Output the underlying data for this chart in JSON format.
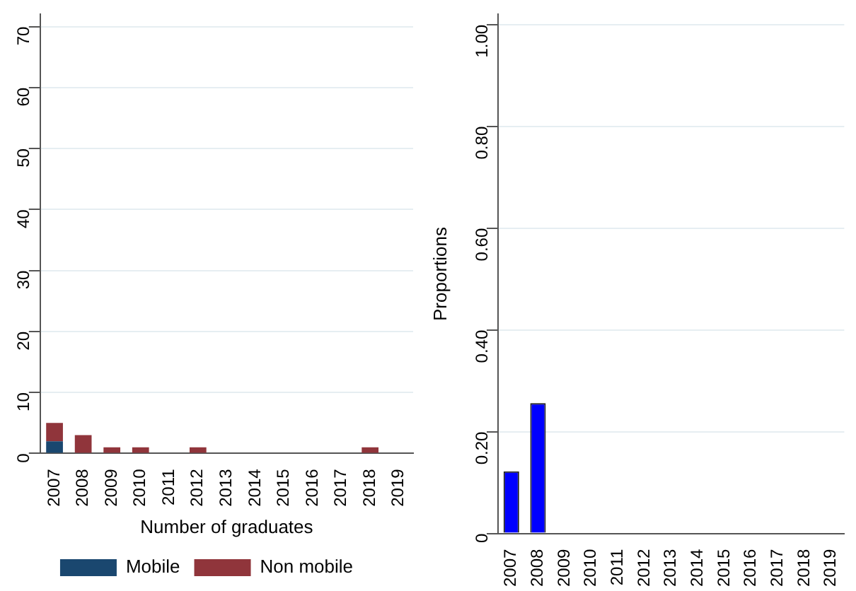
{
  "chart_data": [
    {
      "type": "bar",
      "xlabel": "Number of graduates",
      "categories": [
        "2007",
        "2008",
        "2009",
        "2010",
        "2011",
        "2012",
        "2013",
        "2014",
        "2015",
        "2016",
        "2017",
        "2018",
        "2019"
      ],
      "stacked": true,
      "ylim": [
        0,
        72
      ],
      "yticks": [
        0,
        10,
        20,
        30,
        40,
        50,
        60,
        70
      ],
      "grid": "y",
      "legend": "bottom",
      "series": [
        {
          "name": "Mobile",
          "color": "#1a476f",
          "values": [
            2,
            0,
            0,
            0,
            0,
            0,
            0,
            0,
            0,
            0,
            0,
            0,
            0
          ]
        },
        {
          "name": "Non mobile",
          "color": "#90353b",
          "values": [
            3,
            3,
            1,
            1,
            0,
            1,
            0,
            0,
            0,
            0,
            0,
            1,
            0
          ]
        }
      ]
    },
    {
      "type": "bar",
      "ylabel": "Proportions",
      "categories": [
        "2007",
        "2008",
        "2009",
        "2010",
        "2011",
        "2012",
        "2013",
        "2014",
        "2015",
        "2016",
        "2017",
        "2018",
        "2019"
      ],
      "ylim": [
        0,
        1.02
      ],
      "yticks": [
        0,
        {
          "value": 0.2,
          "label": "0.20"
        },
        {
          "value": 0.4,
          "label": "0.40"
        },
        {
          "value": 0.6,
          "label": "0.60"
        },
        {
          "value": 0.8,
          "label": "0.80"
        },
        {
          "value": 1,
          "label": "1.00"
        }
      ],
      "grid": "y",
      "series": [
        {
          "color": "#0000ff",
          "values": [
            0.122,
            0.256,
            0,
            0,
            0,
            0,
            0,
            0,
            0,
            0,
            0,
            0,
            0
          ]
        }
      ]
    }
  ]
}
